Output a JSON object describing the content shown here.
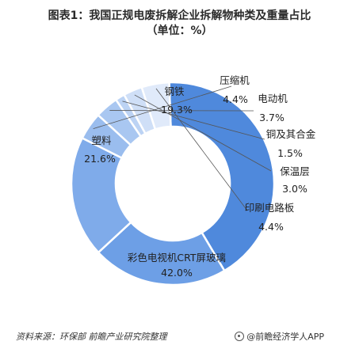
{
  "title_line1": "图表1：我国正规电废拆解企业拆解物种类及重量占比",
  "title_line2": "（单位：%）",
  "source": "资料来源：环保部  前瞻产业研究院整理",
  "brand": "@前瞻经济学人APP",
  "chart_data": {
    "type": "pie",
    "variant": "donut",
    "categories": [
      "彩色电视机CRT屏玻璃",
      "塑料",
      "钢铁",
      "压缩机",
      "电动机",
      "铜及其合金",
      "保温层",
      "印刷电路板"
    ],
    "values": [
      42.0,
      21.6,
      19.3,
      4.4,
      3.7,
      1.5,
      3.0,
      4.4
    ],
    "value_labels": [
      "42.0%",
      "21.6%",
      "19.3%",
      "4.4%",
      "3.7%",
      "1.5%",
      "3.0%",
      "4.4%"
    ],
    "colors": [
      "#4f89dc",
      "#6d9fe6",
      "#7fabea",
      "#9abdee",
      "#a9c7f1",
      "#bcd3f4",
      "#cfdff7",
      "#e0eafa"
    ]
  }
}
